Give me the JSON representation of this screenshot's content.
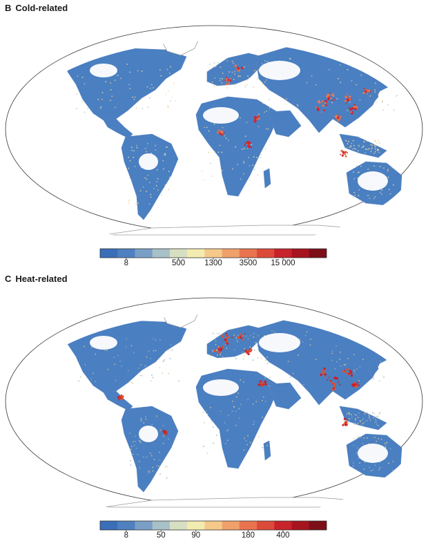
{
  "panels": [
    {
      "id": "B",
      "letter": "B",
      "label": "Cold-related",
      "colorbar": {
        "colors": [
          "#3a6fb8",
          "#4f80c0",
          "#7a9fc6",
          "#a8c0c8",
          "#d6dfc2",
          "#f3ecb0",
          "#f4c98a",
          "#f0a06a",
          "#e8734e",
          "#dc4a3a",
          "#c8222a",
          "#a6141f",
          "#7c0f17"
        ],
        "ticks": [
          {
            "index": 1,
            "label": "8"
          },
          {
            "index": 4,
            "label": "500"
          },
          {
            "index": 6,
            "label": "1300"
          },
          {
            "index": 8,
            "label": "3500"
          },
          {
            "index": 10,
            "label": "15 000"
          }
        ]
      },
      "pattern": {
        "base": "#4a7fc1",
        "mid": [
          "#b8c8c2",
          "#e6dfae",
          "#f3c98a"
        ],
        "hot": [
          "#e8734e",
          "#d2232a"
        ]
      }
    },
    {
      "id": "C",
      "letter": "C",
      "label": "Heat-related",
      "colorbar": {
        "colors": [
          "#3a6fb8",
          "#4f80c0",
          "#7a9fc6",
          "#a8c0c8",
          "#d6dfc2",
          "#f3ecb0",
          "#f4c98a",
          "#f0a06a",
          "#e8734e",
          "#dc4a3a",
          "#c8222a",
          "#a6141f",
          "#7c0f17"
        ],
        "ticks": [
          {
            "index": 1,
            "label": "8"
          },
          {
            "index": 3,
            "label": "50"
          },
          {
            "index": 5,
            "label": "90"
          },
          {
            "index": 8,
            "label": "180"
          },
          {
            "index": 10,
            "label": "400"
          }
        ]
      },
      "pattern": {
        "base": "#4a7fc1",
        "mid": [
          "#8fb0c8",
          "#d9c98f"
        ],
        "hot": [
          "#e0502f",
          "#c8202a"
        ]
      }
    }
  ]
}
